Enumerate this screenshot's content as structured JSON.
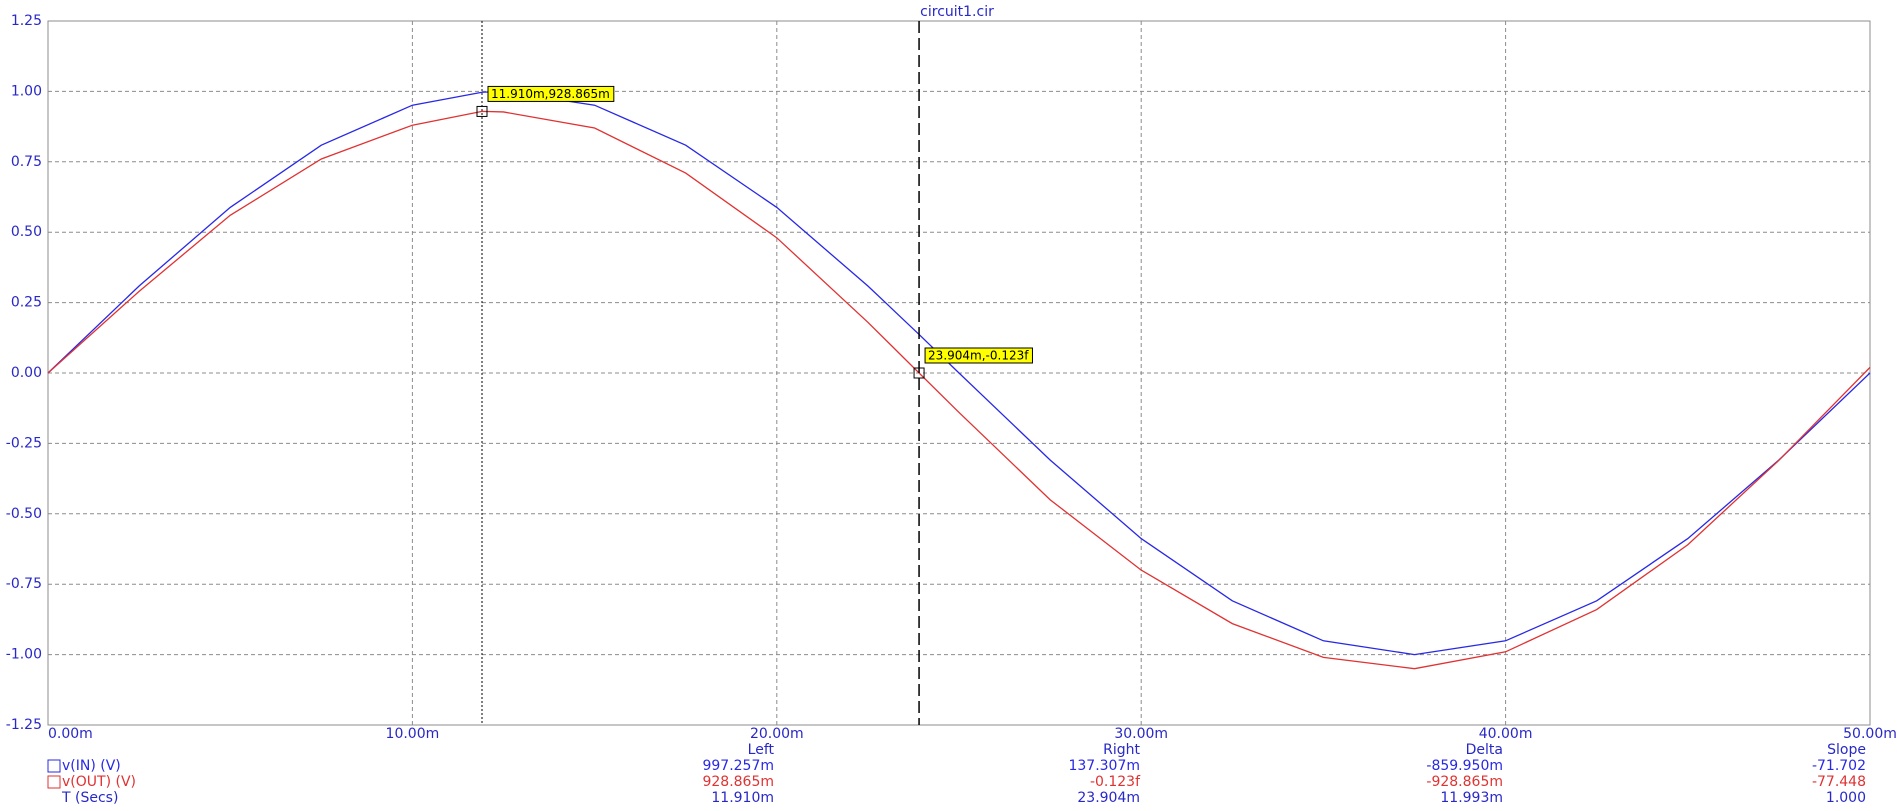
{
  "chart_data": {
    "type": "line",
    "title": "circuit1.cir",
    "x": [
      0,
      2.5,
      5,
      7.5,
      10,
      11.91,
      12.5,
      15,
      17.5,
      20,
      22.5,
      23.904,
      25,
      27.5,
      30,
      32.5,
      35,
      37.5,
      40,
      42.5,
      45,
      47.5,
      50
    ],
    "series": [
      {
        "name": "v(IN) (V)",
        "color": "#2828e6",
        "values": [
          0,
          0.309,
          0.588,
          0.809,
          0.951,
          0.997,
          1.0,
          0.951,
          0.809,
          0.588,
          0.309,
          0.137,
          0,
          -0.309,
          -0.588,
          -0.809,
          -0.951,
          -1.0,
          -0.951,
          -0.809,
          -0.588,
          -0.309,
          0
        ]
      },
      {
        "name": "v(OUT) (V)",
        "color": "#e03232",
        "values": [
          0,
          0.29,
          0.56,
          0.76,
          0.88,
          0.929,
          0.927,
          0.87,
          0.71,
          0.48,
          0.18,
          0,
          -0.14,
          -0.45,
          -0.7,
          -0.89,
          -1.01,
          -1.05,
          -0.99,
          -0.84,
          -0.61,
          -0.31,
          0.02
        ]
      }
    ],
    "xlim": [
      0,
      50
    ],
    "xticks": [
      {
        "value": 0,
        "label": "0.00m"
      },
      {
        "value": 10,
        "label": "10.00m"
      },
      {
        "value": 20,
        "label": "20.00m"
      },
      {
        "value": 30,
        "label": "30.00m"
      },
      {
        "value": 40,
        "label": "40.00m"
      },
      {
        "value": 50,
        "label": "50.00m"
      }
    ],
    "ylim": [
      -1.25,
      1.25
    ],
    "yticks": [
      1.25,
      {
        "value": 1,
        "label": "1.00"
      },
      0.75,
      {
        "value": 0.5,
        "label": "0.50"
      },
      0.25,
      {
        "value": 0,
        "label": "0.00"
      },
      -0.25,
      {
        "value": -0.5,
        "label": "-0.50"
      },
      -0.75,
      {
        "value": -1,
        "label": "-1.00"
      },
      -1.25
    ],
    "grid": true,
    "cursors": [
      {
        "x": 11.91,
        "y": 0.928865,
        "label": "11.910m,928.865m",
        "line_style": "dotted"
      },
      {
        "x": 23.904,
        "y": -1.23e-16,
        "label": "23.904m,-0.123f",
        "line_style": "dashed"
      }
    ],
    "measurements": {
      "headers": [
        "Left",
        "Right",
        "Delta",
        "Slope"
      ],
      "rows": [
        {
          "name": "v(IN) (V)",
          "values": [
            "997.257m",
            "137.307m",
            "-859.950m",
            "-71.702"
          ]
        },
        {
          "name": "v(OUT) (V)",
          "values": [
            "928.865m",
            "-0.123f",
            "-928.865m",
            "-77.448"
          ]
        },
        {
          "name": "T (Secs)",
          "values": [
            "11.910m",
            "23.904m",
            "11.993m",
            "1.000"
          ]
        }
      ]
    }
  }
}
